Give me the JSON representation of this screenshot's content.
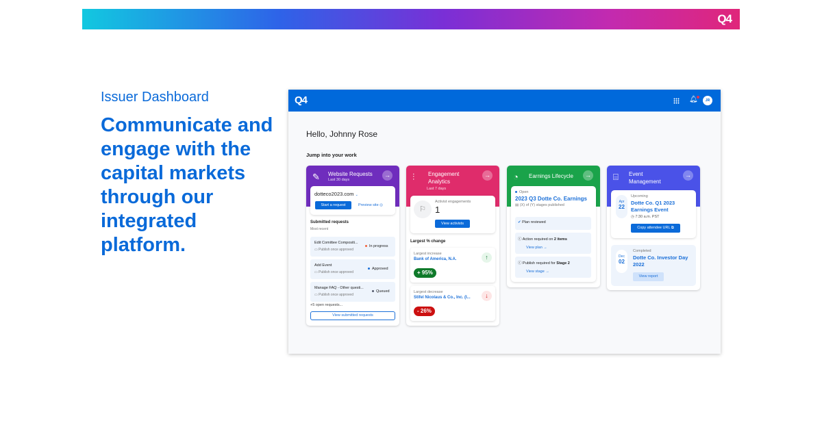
{
  "banner": {
    "logo": "Q4"
  },
  "hero": {
    "kicker": "Issuer Dashboard",
    "headline": "Communicate and engage with the capital markets through our integrated platform."
  },
  "app": {
    "logo": "Q4",
    "avatar_initials": "JR",
    "greeting": "Hello, Johnny Rose",
    "section_title": "Jump into your work",
    "colors": {
      "header": "#0069db",
      "website": "#6f2dbd",
      "engagement": "#df2c6b",
      "earnings": "#1aa34a",
      "events": "#4a52e8"
    },
    "website": {
      "title": "Website Requests",
      "subtitle": "Last 30 days",
      "site": "dotteco2023.com",
      "start": "Start a request",
      "preview": "Preview site",
      "submitted": "Submitted requests",
      "most_recent": "Most recent",
      "requests": [
        {
          "name": "Edit Comittee Compositi...",
          "note": "Publish once approved",
          "status": "In progress",
          "color": "#f2613a"
        },
        {
          "name": "Add Event",
          "note": "Publish once approved",
          "status": "Approved",
          "color": "#1a6fd8"
        },
        {
          "name": "Manage FAQ - Other questi...",
          "note": "Publish once approved",
          "status": "Queued",
          "color": "#555c6e"
        }
      ],
      "more": "+5 open requests...",
      "view_all": "View submitted requests"
    },
    "engagement": {
      "title": "Engagement Analytics",
      "subtitle": "Last 7 days",
      "activist_label": "Activist engagements",
      "activist_count": "1",
      "view_activists": "View activists",
      "largest_change": "Largest % change",
      "increase": {
        "label": "Largest increase",
        "name": "Bank of America, N.A.",
        "value": "+ 95%"
      },
      "decrease": {
        "label": "Largest decrease",
        "name": "Stifel Nicolaus & Co., Inc. (I...",
        "value": "- 26%"
      }
    },
    "earnings": {
      "title": "Earnings Lifecycle",
      "status": "Open",
      "event": "2023 Q3 Dotte Co. Earnings",
      "stages": "(X) of (Y) stages published",
      "steps": [
        {
          "text": "Plan reviewed"
        },
        {
          "text": "Action required on ",
          "bold": "2 items",
          "link": "View plan →"
        },
        {
          "text": "Publish required for ",
          "bold": "Stage 2",
          "link": "View stage →"
        }
      ]
    },
    "events": {
      "title": "Event Management",
      "upcoming": {
        "label": "Upcoming",
        "month": "Apr",
        "day": "22",
        "name": "Dotte Co. Q1 2023 Earnings Event",
        "time": "7:30 a.m. PST",
        "button": "Copy attendee URL"
      },
      "completed": {
        "label": "Completed",
        "month": "Dec",
        "day": "02",
        "name": "Dotte Co. Investor Day 2022",
        "button": "View report"
      }
    }
  }
}
